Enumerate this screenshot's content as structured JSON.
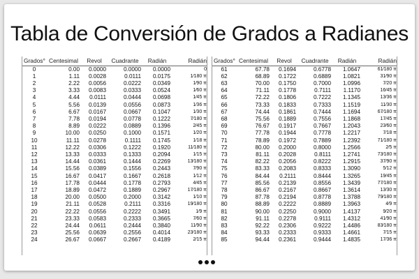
{
  "title": "Tabla de Conversión de Grados a Radianes",
  "headers": [
    "Grados°",
    "Centesimal",
    "Revol",
    "Cuadrante",
    "Radián",
    "Radián"
  ],
  "left_rows": [
    [
      "0",
      "0.00",
      "0.0000",
      "0.0000",
      "0.0000",
      "0"
    ],
    [
      "1",
      "1.11",
      "0.0028",
      "0.0111",
      "0.0175",
      "1⁄180 π"
    ],
    [
      "2",
      "2.22",
      "0.0056",
      "0.0222",
      "0.0349",
      "1⁄90 π"
    ],
    [
      "3",
      "3.33",
      "0.0083",
      "0.0333",
      "0.0524",
      "1⁄60 π"
    ],
    [
      "4",
      "4.44",
      "0.0111",
      "0.0444",
      "0.0698",
      "1⁄45 π"
    ],
    [
      "5",
      "5.56",
      "0.0139",
      "0.0556",
      "0.0873",
      "1⁄36 π"
    ],
    [
      "6",
      "6.67",
      "0.0167",
      "0.0667",
      "0.1047",
      "1⁄30 π"
    ],
    [
      "7",
      "7.78",
      "0.0194",
      "0.0778",
      "0.1222",
      "7⁄180 π"
    ],
    [
      "8",
      "8.89",
      "0.0222",
      "0.0889",
      "0.1396",
      "2⁄45 π"
    ],
    [
      "9",
      "10.00",
      "0.0250",
      "0.1000",
      "0.1571",
      "1⁄20 π"
    ],
    [
      "10",
      "11.11",
      "0.0278",
      "0.1111",
      "0.1745",
      "1⁄18 π"
    ],
    [
      "11",
      "12.22",
      "0.0306",
      "0.1222",
      "0.1920",
      "11⁄180 π"
    ],
    [
      "12",
      "13.33",
      "0.0333",
      "0.1333",
      "0.2094",
      "1⁄15 π"
    ],
    [
      "13",
      "14.44",
      "0.0361",
      "0.1444",
      "0.2269",
      "13⁄180 π"
    ],
    [
      "14",
      "15.56",
      "0.0389",
      "0.1556",
      "0.2443",
      "7⁄90 π"
    ],
    [
      "15",
      "16.67",
      "0.0417",
      "0.1667",
      "0.2618",
      "1⁄12 π"
    ],
    [
      "16",
      "17.78",
      "0.0444",
      "0.1778",
      "0.2793",
      "4⁄45 π"
    ],
    [
      "17",
      "18.89",
      "0.0472",
      "0.1889",
      "0.2967",
      "17⁄180 π"
    ],
    [
      "18",
      "20.00",
      "0.0500",
      "0.2000",
      "0.3142",
      "1⁄10 π"
    ],
    [
      "19",
      "21.11",
      "0.0528",
      "0.2111",
      "0.3316",
      "19⁄180 π"
    ],
    [
      "20",
      "22.22",
      "0.0556",
      "0.2222",
      "0.3491",
      "1⁄9 π"
    ],
    [
      "21",
      "23.33",
      "0.0583",
      "0.2333",
      "0.3665",
      "7⁄60 π"
    ],
    [
      "22",
      "24.44",
      "0.0611",
      "0.2444",
      "0.3840",
      "11⁄90 π"
    ],
    [
      "23",
      "25.56",
      "0.0639",
      "0.2556",
      "0.4014",
      "23⁄180 π"
    ],
    [
      "24",
      "26.67",
      "0.0667",
      "0.2667",
      "0.4189",
      "2⁄15 π"
    ]
  ],
  "right_rows": [
    [
      "61",
      "67.78",
      "0.1694",
      "0.6778",
      "1.0647",
      "61⁄180 π"
    ],
    [
      "62",
      "68.89",
      "0.1722",
      "0.6889",
      "1.0821",
      "31⁄90 π"
    ],
    [
      "63",
      "70.00",
      "0.1750",
      "0.7000",
      "1.0996",
      "7⁄20 π"
    ],
    [
      "64",
      "71.11",
      "0.1778",
      "0.7111",
      "1.1170",
      "16⁄45 π"
    ],
    [
      "65",
      "72.22",
      "0.1806",
      "0.7222",
      "1.1345",
      "13⁄36 π"
    ],
    [
      "66",
      "73.33",
      "0.1833",
      "0.7333",
      "1.1519",
      "11⁄30 π"
    ],
    [
      "67",
      "74.44",
      "0.1861",
      "0.7444",
      "1.1694",
      "67⁄180 π"
    ],
    [
      "68",
      "75.56",
      "0.1889",
      "0.7556",
      "1.1868",
      "17⁄45 π"
    ],
    [
      "69",
      "76.67",
      "0.1917",
      "0.7667",
      "1.2043",
      "23⁄60 π"
    ],
    [
      "70",
      "77.78",
      "0.1944",
      "0.7778",
      "1.2217",
      "7⁄18 π"
    ],
    [
      "71",
      "78.89",
      "0.1972",
      "0.7889",
      "1.2392",
      "71⁄180 π"
    ],
    [
      "72",
      "80.00",
      "0.2000",
      "0.8000",
      "1.2566",
      "2⁄5 π"
    ],
    [
      "73",
      "81.11",
      "0.2028",
      "0.8111",
      "1.2741",
      "73⁄180 π"
    ],
    [
      "74",
      "82.22",
      "0.2056",
      "0.8222",
      "1.2915",
      "37⁄90 π"
    ],
    [
      "75",
      "83.33",
      "0.2083",
      "0.8333",
      "1.3090",
      "5⁄12 π"
    ],
    [
      "76",
      "84.44",
      "0.2111",
      "0.8444",
      "1.3265",
      "19⁄45 π"
    ],
    [
      "77",
      "85.56",
      "0.2139",
      "0.8556",
      "1.3439",
      "77⁄180 π"
    ],
    [
      "78",
      "86.67",
      "0.2167",
      "0.8667",
      "1.3614",
      "13⁄30 π"
    ],
    [
      "79",
      "87.78",
      "0.2194",
      "0.8778",
      "1.3788",
      "79⁄180 π"
    ],
    [
      "80",
      "88.89",
      "0.2222",
      "0.8889",
      "1.3963",
      "4⁄9 π"
    ],
    [
      "81",
      "90.00",
      "0.2250",
      "0.9000",
      "1.4137",
      "9⁄20 π"
    ],
    [
      "82",
      "91.11",
      "0.2278",
      "0.9111",
      "1.4312",
      "41⁄90 π"
    ],
    [
      "83",
      "92.22",
      "0.2306",
      "0.9222",
      "1.4486",
      "83⁄180 π"
    ],
    [
      "84",
      "93.33",
      "0.2333",
      "0.9333",
      "1.4661",
      "7⁄15 π"
    ],
    [
      "85",
      "94.44",
      "0.2361",
      "0.9444",
      "1.4835",
      "17⁄36 π"
    ]
  ],
  "more_indicator": "•••"
}
